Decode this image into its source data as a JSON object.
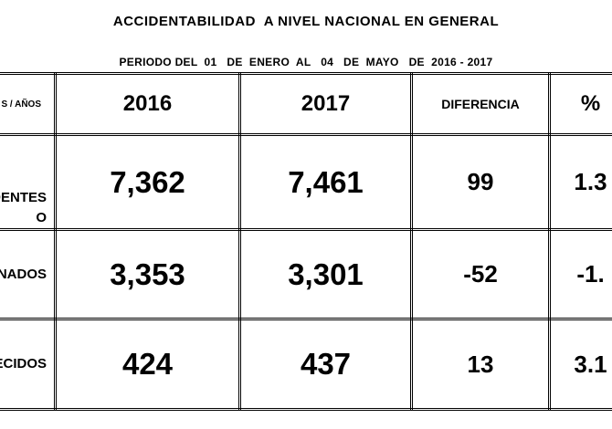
{
  "title": "ACCIDENTABILIDAD  A NIVEL NACIONAL EN GENERAL",
  "period": "PERIODO DEL  01   DE  ENERO  AL   04   DE  MAYO   DE  2016 - 2017",
  "table": {
    "header": {
      "concept": "S /   AÑOS",
      "y2016": "2016",
      "y2017": "2017",
      "diff": "DIFERENCIA",
      "pct": "%"
    },
    "rows": [
      {
        "label_line1": "DENTES",
        "label_line2": "O",
        "v2016": "7,362",
        "v2017": "7,461",
        "diff": "99",
        "pct": "1.3"
      },
      {
        "label_line1": "ONADOS",
        "label_line2": "",
        "v2016": "3,353",
        "v2017": "3,301",
        "diff": "-52",
        "pct": "-1."
      },
      {
        "label_line1": "ECIDOS",
        "label_line2": "",
        "v2016": "424",
        "v2017": "437",
        "diff": "13",
        "pct": "3.1"
      }
    ]
  }
}
